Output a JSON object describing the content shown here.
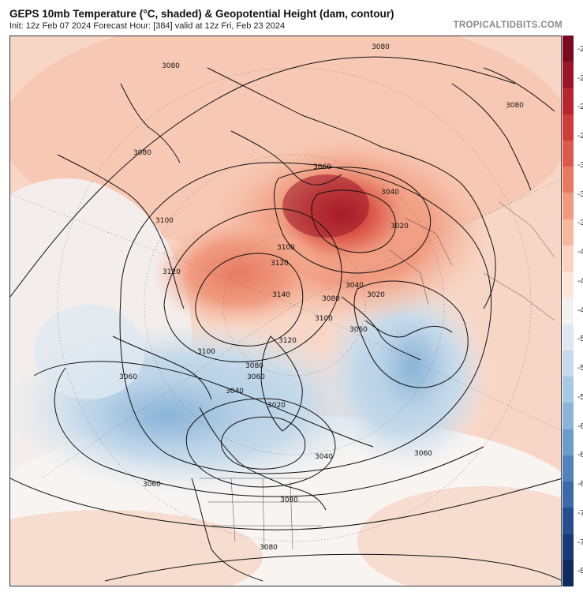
{
  "header": {
    "title": "GEPS 10mb Temperature (°C, shaded) & Geopotential Height (dam, contour)",
    "subtitle": "Init: 12z Feb 07 2024   Forecast Hour: [384]   valid at 12z Fri, Feb 23 2024",
    "brand": "TROPICALTIDBITS.COM"
  },
  "map": {
    "contour_labels": [
      "3080",
      "3080",
      "3080",
      "3080",
      "3060",
      "3040",
      "3020",
      "3100",
      "3100",
      "3120",
      "3120",
      "3140",
      "3080",
      "3100",
      "3060",
      "3040",
      "3020",
      "3120",
      "3100",
      "3080",
      "3060",
      "3040",
      "3020",
      "3060",
      "3040",
      "3060",
      "3060",
      "3080",
      "3080"
    ]
  },
  "colorbar": {
    "tick_labels": [
      "-2",
      "-2",
      "-2",
      "-2",
      "-3",
      "-3",
      "-3",
      "-4",
      "-4",
      "-4",
      "-5",
      "-5",
      "-5",
      "-6",
      "-6",
      "-6",
      "-7",
      "-7",
      "-8"
    ],
    "colors": [
      "#7a0b1f",
      "#9b1427",
      "#b8252e",
      "#cc3d3a",
      "#dc5a4b",
      "#e87a62",
      "#f09b80",
      "#f6b9a0",
      "#f9d2c0",
      "#fbe6da",
      "#f4f2f0",
      "#dfe8f1",
      "#c6daea",
      "#a9c8e2",
      "#8bb4d8",
      "#6b9ccb",
      "#4f83bb",
      "#3a6aa8",
      "#264f8f",
      "#173a77",
      "#0e2a5e"
    ],
    "color_meaning": "red = warm, blue = cold"
  }
}
